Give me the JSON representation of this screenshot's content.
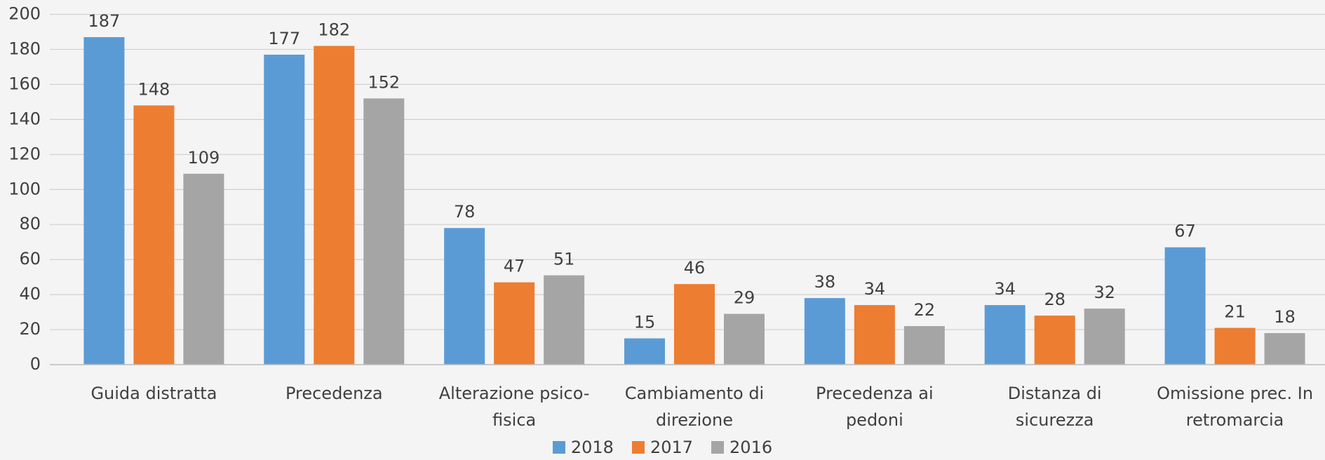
{
  "chart_data": {
    "type": "bar",
    "categories": [
      "Guida distratta",
      "Precedenza",
      "Alterazione psico-fisica",
      "Cambiamento di direzione",
      "Precedenza ai pedoni",
      "Distanza di sicurezza",
      "Omissione prec. In retromarcia"
    ],
    "series": [
      {
        "name": "2018",
        "color": "#5b9bd5",
        "values": [
          187,
          177,
          78,
          15,
          38,
          34,
          67
        ]
      },
      {
        "name": "2017",
        "color": "#ed7d31",
        "values": [
          148,
          182,
          47,
          46,
          34,
          28,
          21
        ]
      },
      {
        "name": "2016",
        "color": "#a5a5a5",
        "values": [
          109,
          152,
          51,
          29,
          22,
          32,
          18
        ]
      }
    ],
    "ylim": [
      0,
      200
    ],
    "yticks": [
      0,
      20,
      40,
      60,
      80,
      100,
      120,
      140,
      160,
      180,
      200
    ],
    "grid": true,
    "legend": "bottom"
  }
}
